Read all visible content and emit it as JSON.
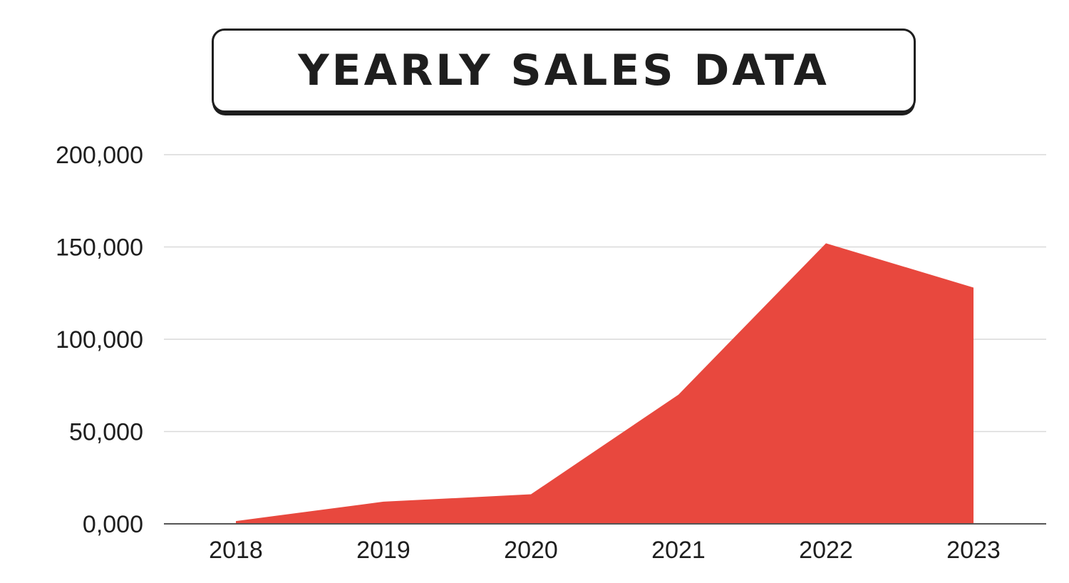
{
  "title": "YEARLY SALES DATA",
  "colors": {
    "area": "#e8483e",
    "grid": "#d9d9d9",
    "axis": "#555555",
    "text": "#1e1e1e"
  },
  "chart_data": {
    "type": "area",
    "title": "YEARLY SALES DATA",
    "xlabel": "",
    "ylabel": "",
    "categories": [
      "2018",
      "2019",
      "2020",
      "2021",
      "2022",
      "2023"
    ],
    "values": [
      1500,
      12000,
      16000,
      70000,
      152000,
      128000
    ],
    "ylim": [
      0,
      200000
    ],
    "yticks": [
      0,
      50000,
      100000,
      150000,
      200000
    ],
    "ytick_labels": [
      "0,000",
      "50,000",
      "100,000",
      "150,000",
      "200,000"
    ],
    "grid": true,
    "legend": "none"
  }
}
